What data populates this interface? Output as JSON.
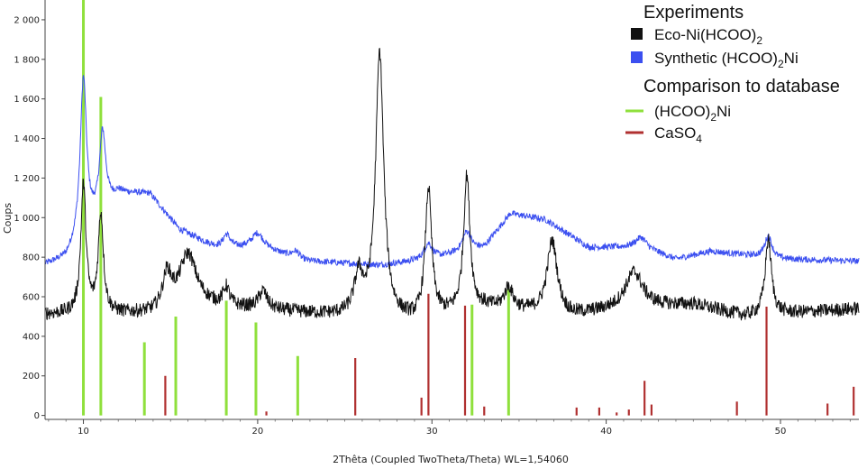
{
  "chart_data": {
    "type": "line",
    "xlabel": "2Thêta (Coupled TwoTheta/Theta) WL=1,54060",
    "ylabel": "Coups",
    "xlim": [
      7.8,
      54.5
    ],
    "ylim": [
      -20,
      2100
    ],
    "x_ticks": [
      10,
      20,
      30,
      40,
      50
    ],
    "x_tick_labels": [
      "10",
      "20",
      "30",
      "40",
      "50"
    ],
    "y_ticks": [
      0,
      200,
      400,
      600,
      800,
      1000,
      1200,
      1400,
      1600,
      1800,
      2000
    ],
    "y_tick_labels": [
      "0",
      "200",
      "400",
      "600",
      "800",
      "1 000",
      "1 200",
      "1 400",
      "1 600",
      "1 800",
      "2 000"
    ],
    "legend": {
      "placement": "top-right",
      "heading1": "Experiments",
      "heading2": "Comparison to database",
      "items": [
        {
          "label": "Eco-Ni(HCOO)",
          "sub": "2",
          "after": "",
          "color": "#111111",
          "kind": "box"
        },
        {
          "label": "Synthetic (HCOO)",
          "sub": "2",
          "after": "Ni",
          "color": "#3b4ff0",
          "kind": "box"
        },
        {
          "label": "(HCOO)",
          "sub": "2",
          "after": "Ni",
          "color": "#8fe03c",
          "kind": "line"
        },
        {
          "label": "CaSO",
          "sub": "4",
          "after": "",
          "color": "#b03030",
          "kind": "line"
        }
      ]
    },
    "series": [
      {
        "name": "Eco-Ni(HCOO)2",
        "color": "#111111",
        "baseline": [
          [
            7.8,
            510
          ],
          [
            14,
            510
          ],
          [
            16,
            560
          ],
          [
            22,
            520
          ],
          [
            26,
            490
          ],
          [
            29,
            470
          ],
          [
            33,
            540
          ],
          [
            38,
            500
          ],
          [
            41,
            540
          ],
          [
            45,
            560
          ],
          [
            48,
            500
          ],
          [
            54.5,
            540
          ]
        ],
        "noise": 35,
        "peaks": [
          [
            10.0,
            650,
            0.18
          ],
          [
            11.0,
            500,
            0.18
          ],
          [
            14.8,
            170,
            0.3
          ],
          [
            16.0,
            250,
            0.6
          ],
          [
            18.2,
            90,
            0.2
          ],
          [
            20.3,
            90,
            0.3
          ],
          [
            25.8,
            200,
            0.3
          ],
          [
            27.0,
            1340,
            0.28
          ],
          [
            29.8,
            650,
            0.22
          ],
          [
            32.0,
            680,
            0.22
          ],
          [
            34.4,
            110,
            0.3
          ],
          [
            36.9,
            370,
            0.35
          ],
          [
            41.6,
            180,
            0.6
          ],
          [
            49.3,
            380,
            0.22
          ]
        ]
      },
      {
        "name": "Synthetic (HCOO)2Ni",
        "color": "#3b4ff0",
        "baseline": [
          [
            7.8,
            760
          ],
          [
            9,
            790
          ],
          [
            12,
            1120
          ],
          [
            13.8,
            1120
          ],
          [
            15.5,
            940
          ],
          [
            18,
            830
          ],
          [
            20,
            860
          ],
          [
            22.5,
            780
          ],
          [
            27,
            760
          ],
          [
            30,
            790
          ],
          [
            33,
            850
          ],
          [
            34.5,
            1020
          ],
          [
            36.5,
            990
          ],
          [
            39,
            850
          ],
          [
            42,
            850
          ],
          [
            44,
            790
          ],
          [
            46,
            830
          ],
          [
            50,
            790
          ],
          [
            54.5,
            780
          ]
        ],
        "noise": 16,
        "peaks": [
          [
            10.0,
            800,
            0.22
          ],
          [
            11.1,
            400,
            0.22
          ],
          [
            18.2,
            80,
            0.3
          ],
          [
            20.0,
            60,
            0.4
          ],
          [
            22.2,
            40,
            0.3
          ],
          [
            29.8,
            80,
            0.3
          ],
          [
            32.0,
            100,
            0.3
          ],
          [
            42.0,
            50,
            0.4
          ],
          [
            49.3,
            110,
            0.25
          ]
        ]
      }
    ],
    "reference_series": [
      {
        "name": "(HCOO)2Ni",
        "color": "#8fe03c",
        "sticks": [
          [
            10.0,
            2100
          ],
          [
            11.0,
            1610
          ],
          [
            13.5,
            370
          ],
          [
            15.3,
            500
          ],
          [
            18.2,
            580
          ],
          [
            19.9,
            470
          ],
          [
            22.3,
            300
          ],
          [
            32.3,
            560
          ],
          [
            34.4,
            640
          ]
        ]
      },
      {
        "name": "CaSO4",
        "color": "#b03030",
        "sticks": [
          [
            14.7,
            200
          ],
          [
            20.5,
            20
          ],
          [
            25.6,
            290
          ],
          [
            29.4,
            90
          ],
          [
            29.8,
            615
          ],
          [
            31.9,
            555
          ],
          [
            33.0,
            45
          ],
          [
            38.3,
            40
          ],
          [
            39.6,
            40
          ],
          [
            40.6,
            15
          ],
          [
            41.3,
            30
          ],
          [
            42.2,
            175
          ],
          [
            42.6,
            55
          ],
          [
            47.5,
            70
          ],
          [
            49.2,
            550
          ],
          [
            52.7,
            60
          ],
          [
            54.2,
            145
          ]
        ]
      }
    ]
  }
}
